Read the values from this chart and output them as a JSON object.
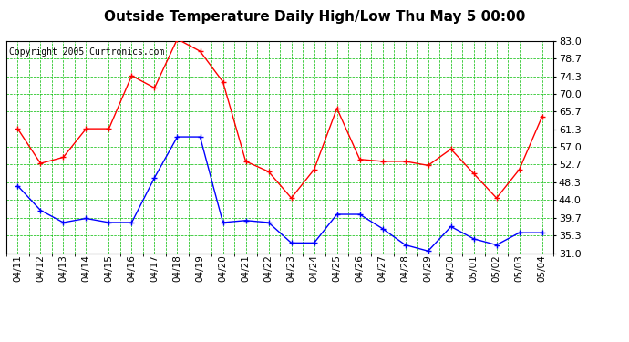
{
  "title": "Outside Temperature Daily High/Low Thu May 5 00:00",
  "copyright": "Copyright 2005 Curtronics.com",
  "labels": [
    "04/11",
    "04/12",
    "04/13",
    "04/14",
    "04/15",
    "04/16",
    "04/17",
    "04/18",
    "04/19",
    "04/20",
    "04/21",
    "04/22",
    "04/23",
    "04/24",
    "04/25",
    "04/26",
    "04/27",
    "04/28",
    "04/29",
    "04/30",
    "05/01",
    "05/02",
    "05/03",
    "05/04"
  ],
  "high": [
    61.5,
    53.0,
    54.5,
    61.5,
    61.5,
    74.5,
    71.5,
    83.5,
    80.5,
    73.0,
    53.5,
    51.0,
    44.5,
    51.5,
    66.5,
    54.0,
    53.5,
    53.5,
    52.5,
    56.5,
    50.5,
    44.5,
    51.5,
    64.5
  ],
  "low": [
    47.5,
    41.5,
    38.5,
    39.5,
    38.5,
    38.5,
    49.5,
    59.5,
    59.5,
    38.5,
    39.0,
    38.5,
    33.5,
    33.5,
    40.5,
    40.5,
    37.0,
    33.0,
    31.5,
    37.5,
    34.5,
    33.0,
    36.0,
    36.0
  ],
  "ylim": [
    31.0,
    83.0
  ],
  "yticks": [
    31.0,
    35.3,
    39.7,
    44.0,
    48.3,
    52.7,
    57.0,
    61.3,
    65.7,
    70.0,
    74.3,
    78.7,
    83.0
  ],
  "high_color": "#ff0000",
  "low_color": "#0000ff",
  "grid_color": "#00bb00",
  "bg_color": "#ffffff",
  "title_fontsize": 11,
  "copyright_fontsize": 7,
  "tick_fontsize": 7.5,
  "ytick_fontsize": 8
}
